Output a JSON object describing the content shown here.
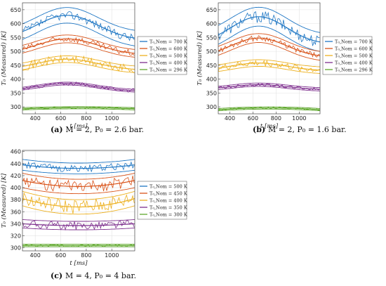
{
  "figure": {
    "background": "#ffffff"
  },
  "chart_data": [
    {
      "id": "a",
      "type": "line",
      "caption": "(a) M = 2, P₀ = 2.6 bar.",
      "caption_parts": {
        "tag": "(a)",
        "rest": "M = 2, P₀ = 2.6 bar."
      },
      "xlabel": "t [ms]",
      "ylabel": "T₀ (Measured) [K]",
      "xlim": [
        300,
        1180
      ],
      "ylim": [
        275,
        675
      ],
      "xticks": [
        400,
        600,
        800,
        1000
      ],
      "yticks": [
        300,
        350,
        400,
        450,
        500,
        550,
        600,
        650
      ],
      "grid": true,
      "legend_position": "right-middle",
      "series": [
        {
          "name": "T₀,Nom = 700 K",
          "color": "#1f77c4",
          "peak": 630,
          "base": 540,
          "noise": 15,
          "band": 28,
          "hump": true
        },
        {
          "name": "T₀,Nom = 600 K",
          "color": "#d95319",
          "peak": 545,
          "base": 488,
          "noise": 12,
          "band": 14,
          "hump": true
        },
        {
          "name": "T₀,Nom = 500 K",
          "color": "#edb120",
          "peak": 472,
          "base": 432,
          "noise": 16,
          "band": 12,
          "hump": true
        },
        {
          "name": "T₀,Nom = 400 K",
          "color": "#7e2f8e",
          "peak": 384,
          "base": 356,
          "noise": 7,
          "band": 5,
          "hump": true
        },
        {
          "name": "T₀,Nom = 296 K",
          "color": "#5fa82c",
          "peak": 297,
          "base": 293,
          "noise": 3,
          "band": 4,
          "hump": false
        }
      ]
    },
    {
      "id": "b",
      "type": "line",
      "caption": "(b) M = 2, P₀ = 1.6 bar.",
      "caption_parts": {
        "tag": "(b)",
        "rest": "M = 2, P₀ = 1.6 bar."
      },
      "xlabel": "t [ms]",
      "ylabel": "T₀ (Measured) [K]",
      "xlim": [
        300,
        1180
      ],
      "ylim": [
        275,
        675
      ],
      "xticks": [
        400,
        600,
        800,
        1000
      ],
      "yticks": [
        300,
        350,
        400,
        450,
        500,
        550,
        600,
        650
      ],
      "grid": true,
      "legend_position": "outside-right",
      "series": [
        {
          "name": "T₀,Nom = 700 K",
          "color": "#1f77c4",
          "peak": 625,
          "base": 525,
          "noise": 22,
          "band": 34,
          "hump": true
        },
        {
          "name": "T₀,Nom = 600 K",
          "color": "#d95319",
          "peak": 548,
          "base": 478,
          "noise": 10,
          "band": 16,
          "hump": true
        },
        {
          "name": "T₀,Nom = 500 K",
          "color": "#edb120",
          "peak": 458,
          "base": 430,
          "noise": 12,
          "band": 12,
          "hump": true
        },
        {
          "name": "T₀,Nom = 400 K",
          "color": "#7e2f8e",
          "peak": 380,
          "base": 362,
          "noise": 6,
          "band": 6,
          "hump": true
        },
        {
          "name": "T₀,Nom = 296 K",
          "color": "#5fa82c",
          "peak": 296,
          "base": 290,
          "noise": 3,
          "band": 4,
          "hump": false
        }
      ]
    },
    {
      "id": "c",
      "type": "line",
      "caption": "(c) M = 4, P₀ = 4 bar.",
      "caption_parts": {
        "tag": "(c)",
        "rest": "M = 4, P₀ = 4 bar."
      },
      "xlabel": "t [ms]",
      "ylabel": "T₀ (Measured) [K]",
      "xlim": [
        300,
        1180
      ],
      "ylim": [
        295,
        462
      ],
      "xticks": [
        400,
        600,
        800,
        1000
      ],
      "yticks": [
        300,
        320,
        340,
        360,
        380,
        400,
        420,
        440,
        460
      ],
      "grid": true,
      "legend_position": "right-middle",
      "series": [
        {
          "name": "T₀,Nom = 500 K",
          "color": "#1f77c4",
          "peak": 432,
          "base": 438,
          "noise": 6,
          "band": 9,
          "hump": false
        },
        {
          "name": "T₀,Nom = 450 K",
          "color": "#d95319",
          "peak": 402,
          "base": 412,
          "noise": 10,
          "band": 12,
          "hump": false
        },
        {
          "name": "T₀,Nom = 400 K",
          "color": "#edb120",
          "peak": 368,
          "base": 382,
          "noise": 12,
          "band": 12,
          "hump": false
        },
        {
          "name": "T₀,Nom = 350 K",
          "color": "#7e2f8e",
          "peak": 337,
          "base": 340,
          "noise": 7,
          "band": 7,
          "hump": false
        },
        {
          "name": "T₀,Nom = 300 K",
          "color": "#5fa82c",
          "peak": 304,
          "base": 304,
          "noise": 2,
          "band": 2,
          "hump": false
        }
      ]
    }
  ]
}
